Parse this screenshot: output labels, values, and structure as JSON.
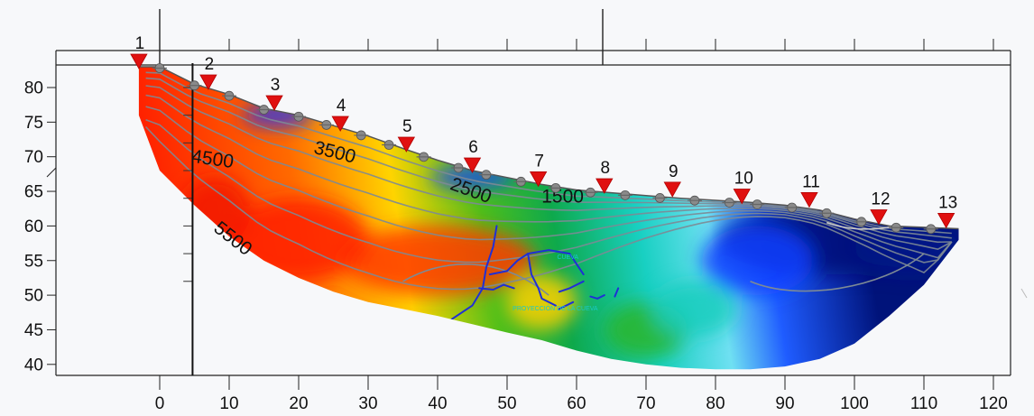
{
  "chart_data": {
    "type": "heatmap",
    "title": "",
    "xlabel": "",
    "ylabel": "",
    "xlim": [
      -22,
      123
    ],
    "ylim": [
      38.5,
      85
    ],
    "x_ticks": [
      0,
      10,
      20,
      30,
      40,
      50,
      60,
      70,
      80,
      90,
      100,
      110,
      120
    ],
    "y_ticks": [
      40,
      45,
      50,
      55,
      60,
      65,
      70,
      75,
      80
    ],
    "surface": [
      [
        -3,
        83
      ],
      [
        0,
        83
      ],
      [
        5,
        80.5
      ],
      [
        10,
        79
      ],
      [
        15,
        77
      ],
      [
        20,
        76
      ],
      [
        25,
        74.5
      ],
      [
        30,
        73
      ],
      [
        35,
        71.2
      ],
      [
        40,
        69.5
      ],
      [
        45,
        68
      ],
      [
        50,
        67
      ],
      [
        55,
        66
      ],
      [
        60,
        65.2
      ],
      [
        65,
        64.8
      ],
      [
        70,
        64.4
      ],
      [
        75,
        64
      ],
      [
        80,
        63.7
      ],
      [
        85,
        63.4
      ],
      [
        90,
        63
      ],
      [
        95,
        62.3
      ],
      [
        100,
        61
      ],
      [
        105,
        60
      ],
      [
        110,
        59.8
      ],
      [
        115,
        59.6
      ]
    ],
    "bottom": [
      [
        -3,
        76
      ],
      [
        0,
        68
      ],
      [
        5,
        63
      ],
      [
        10,
        58.5
      ],
      [
        15,
        55
      ],
      [
        20,
        52.5
      ],
      [
        25,
        50.5
      ],
      [
        30,
        49
      ],
      [
        35,
        48
      ],
      [
        40,
        47
      ],
      [
        45,
        45.8
      ],
      [
        50,
        44.6
      ],
      [
        55,
        43.5
      ],
      [
        60,
        42
      ],
      [
        65,
        40.8
      ],
      [
        70,
        40
      ],
      [
        75,
        39.5
      ],
      [
        80,
        39.3
      ],
      [
        85,
        39.3
      ],
      [
        90,
        39.7
      ],
      [
        95,
        40.8
      ],
      [
        100,
        43
      ],
      [
        105,
        47
      ],
      [
        110,
        51.5
      ],
      [
        115,
        58
      ]
    ],
    "contours": [
      {
        "label": "1500",
        "label_x": 58,
        "label_y": 63.4
      },
      {
        "label": "2500",
        "label_x": 44.5,
        "label_y": 64.3
      },
      {
        "label": "3500",
        "label_x": 25,
        "label_y": 69.8
      },
      {
        "label": "4500",
        "label_x": 7.5,
        "label_y": 68.8
      },
      {
        "label": "5500",
        "label_x": 10,
        "label_y": 57.5
      }
    ],
    "stations": [
      {
        "label": "1",
        "x": -3,
        "y": 83
      },
      {
        "label": "2",
        "x": 7,
        "y": 80
      },
      {
        "label": "3",
        "x": 16.5,
        "y": 77
      },
      {
        "label": "4",
        "x": 26,
        "y": 74
      },
      {
        "label": "5",
        "x": 35.5,
        "y": 71
      },
      {
        "label": "6",
        "x": 45,
        "y": 68
      },
      {
        "label": "7",
        "x": 54.5,
        "y": 66
      },
      {
        "label": "8",
        "x": 64,
        "y": 65
      },
      {
        "label": "9",
        "x": 73.8,
        "y": 64.5
      },
      {
        "label": "10",
        "x": 83.8,
        "y": 63.5
      },
      {
        "label": "11",
        "x": 93.5,
        "y": 63
      },
      {
        "label": "12",
        "x": 103.5,
        "y": 60.5
      },
      {
        "label": "13",
        "x": 113.2,
        "y": 60
      }
    ],
    "geophones_x": [
      0,
      5,
      10,
      15,
      20,
      24,
      29,
      33,
      38,
      43,
      47,
      52,
      57,
      62,
      67,
      72,
      77,
      82,
      86,
      91,
      96,
      101,
      106,
      111
    ],
    "annotations": [
      "CUEVA",
      "PROYECCIÓN DE LA CUEVA"
    ]
  },
  "colors": {
    "low_velocity": "#00147a",
    "mid_velocity": "#14c8c0",
    "high_velocity": "#e80000",
    "station_marker": "#e01010",
    "geophone": "#8a8a8a",
    "contour": "#7d8a95",
    "cave_outline": "#1f2fd6"
  },
  "icons": {
    "station": "red-triangle-icon",
    "geophone": "geophone-diamond-icon"
  }
}
